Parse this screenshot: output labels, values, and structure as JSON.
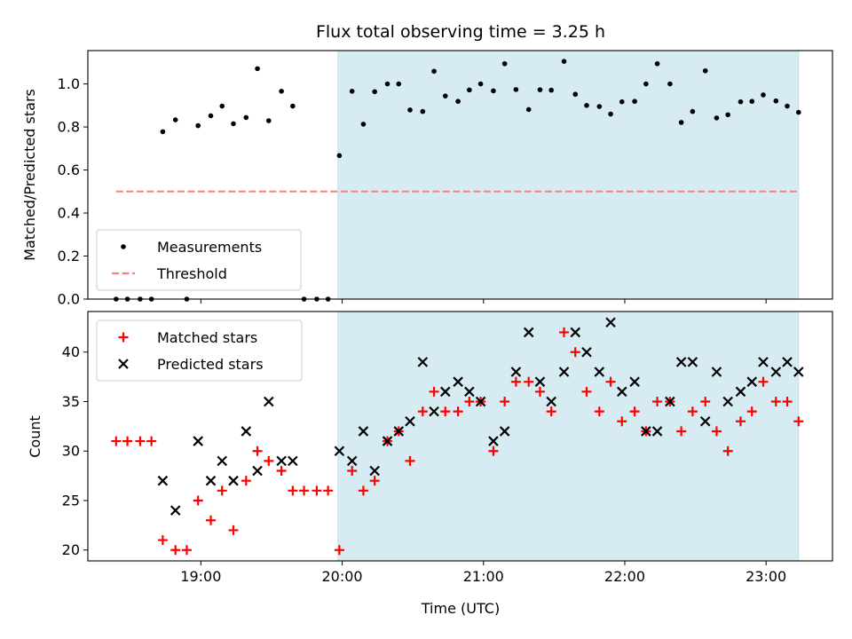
{
  "chart_data": {
    "title": "Flux total observing time = 3.25 h",
    "xlabel": "Time (UTC)",
    "x_unit": "hours (UTC)",
    "xlim": [
      18.2,
      23.47
    ],
    "x_ticks": [
      19,
      20,
      21,
      22,
      23
    ],
    "x_tick_labels": [
      "19:00",
      "20:00",
      "21:00",
      "22:00",
      "23:00"
    ],
    "observing_window": {
      "start": 19.97,
      "end": 23.23,
      "color": "#add8e6"
    },
    "panels": [
      {
        "type": "scatter",
        "ylabel": "Matched/Predicted stars",
        "ylim": [
          0,
          1.155
        ],
        "y_ticks": [
          0.0,
          0.2,
          0.4,
          0.6,
          0.8,
          1.0
        ],
        "y_tick_labels": [
          "0.0",
          "0.2",
          "0.4",
          "0.6",
          "0.8",
          "1.0"
        ],
        "legend_position": "lower left",
        "series": [
          {
            "name": "Measurements",
            "marker": "dot",
            "color": "#000000",
            "x": [
              18.4,
              18.48,
              18.57,
              18.65,
              18.73,
              18.82,
              18.9,
              18.98,
              19.07,
              19.15,
              19.23,
              19.32,
              19.4,
              19.48,
              19.57,
              19.65,
              19.73,
              19.82,
              19.9,
              19.98,
              20.07,
              20.15,
              20.23,
              20.32,
              20.4,
              20.48,
              20.57,
              20.65,
              20.73,
              20.82,
              20.9,
              20.98,
              21.07,
              21.15,
              21.23,
              21.32,
              21.4,
              21.48,
              21.57,
              21.65,
              21.73,
              21.82,
              21.9,
              21.98,
              22.07,
              22.15,
              22.23,
              22.32,
              22.4,
              22.48,
              22.57,
              22.65,
              22.73,
              22.82,
              22.9,
              22.98,
              23.07,
              23.15,
              23.23
            ],
            "y": [
              0.0,
              0.0,
              0.0,
              0.0,
              0.778,
              0.833,
              0.0,
              0.806,
              0.852,
              0.897,
              0.815,
              0.844,
              1.071,
              0.829,
              0.966,
              0.897,
              0.0,
              0.0,
              0.0,
              0.667,
              0.966,
              0.813,
              0.964,
              1.0,
              1.0,
              0.879,
              0.872,
              1.059,
              0.944,
              0.919,
              0.972,
              1.0,
              0.968,
              1.094,
              0.974,
              0.881,
              0.973,
              0.971,
              1.105,
              0.952,
              0.9,
              0.895,
              0.86,
              0.917,
              0.919,
              1.0,
              1.094,
              1.0,
              0.821,
              0.872,
              1.061,
              0.842,
              0.857,
              0.917,
              0.919,
              0.949,
              0.921,
              0.897,
              0.868
            ]
          },
          {
            "name": "Threshold",
            "marker": "dashed-line",
            "color": "#ff7f7f",
            "x": [
              18.4,
              23.23
            ],
            "y": [
              0.5,
              0.5
            ]
          }
        ]
      },
      {
        "type": "scatter",
        "ylabel": "Count",
        "ylim": [
          18.9,
          44.1
        ],
        "y_ticks": [
          20,
          25,
          30,
          35,
          40
        ],
        "y_tick_labels": [
          "20",
          "25",
          "30",
          "35",
          "40"
        ],
        "legend_position": "upper left",
        "series": [
          {
            "name": "Matched stars",
            "marker": "plus",
            "color": "#ff0000",
            "x": [
              18.4,
              18.48,
              18.57,
              18.65,
              18.73,
              18.82,
              18.9,
              18.98,
              19.07,
              19.15,
              19.23,
              19.32,
              19.4,
              19.48,
              19.57,
              19.65,
              19.73,
              19.82,
              19.9,
              19.98,
              20.07,
              20.15,
              20.23,
              20.32,
              20.4,
              20.48,
              20.57,
              20.65,
              20.73,
              20.82,
              20.9,
              20.98,
              21.07,
              21.15,
              21.23,
              21.32,
              21.4,
              21.48,
              21.57,
              21.65,
              21.73,
              21.82,
              21.9,
              21.98,
              22.07,
              22.15,
              22.23,
              22.32,
              22.4,
              22.48,
              22.57,
              22.65,
              22.73,
              22.82,
              22.9,
              22.98,
              23.07,
              23.15,
              23.23
            ],
            "y": [
              31,
              31,
              31,
              31,
              21,
              20,
              20,
              25,
              23,
              26,
              22,
              27,
              30,
              29,
              28,
              26,
              26,
              26,
              26,
              20,
              28,
              26,
              27,
              31,
              32,
              29,
              34,
              36,
              34,
              34,
              35,
              35,
              30,
              35,
              37,
              37,
              36,
              34,
              42,
              40,
              36,
              34,
              37,
              33,
              34,
              32,
              35,
              35,
              32,
              34,
              35,
              32,
              30,
              33,
              34,
              37,
              35,
              35,
              33
            ]
          },
          {
            "name": "Predicted stars",
            "marker": "x",
            "color": "#000000",
            "x": [
              18.73,
              18.82,
              18.98,
              19.07,
              19.15,
              19.23,
              19.32,
              19.4,
              19.48,
              19.57,
              19.65,
              19.98,
              20.07,
              20.15,
              20.23,
              20.32,
              20.4,
              20.48,
              20.57,
              20.65,
              20.73,
              20.82,
              20.9,
              20.98,
              21.07,
              21.15,
              21.23,
              21.32,
              21.4,
              21.48,
              21.57,
              21.65,
              21.73,
              21.82,
              21.9,
              21.98,
              22.07,
              22.15,
              22.23,
              22.32,
              22.4,
              22.48,
              22.57,
              22.65,
              22.73,
              22.82,
              22.9,
              22.98,
              23.07,
              23.15,
              23.23
            ],
            "y": [
              27,
              24,
              31,
              27,
              29,
              27,
              32,
              28,
              35,
              29,
              29,
              30,
              29,
              32,
              28,
              31,
              32,
              33,
              39,
              34,
              36,
              37,
              36,
              35,
              31,
              32,
              38,
              42,
              37,
              35,
              38,
              42,
              40,
              38,
              43,
              36,
              37,
              32,
              32,
              35,
              39,
              39,
              33,
              38,
              35,
              36,
              37,
              39,
              38,
              39,
              38
            ]
          }
        ]
      }
    ]
  }
}
